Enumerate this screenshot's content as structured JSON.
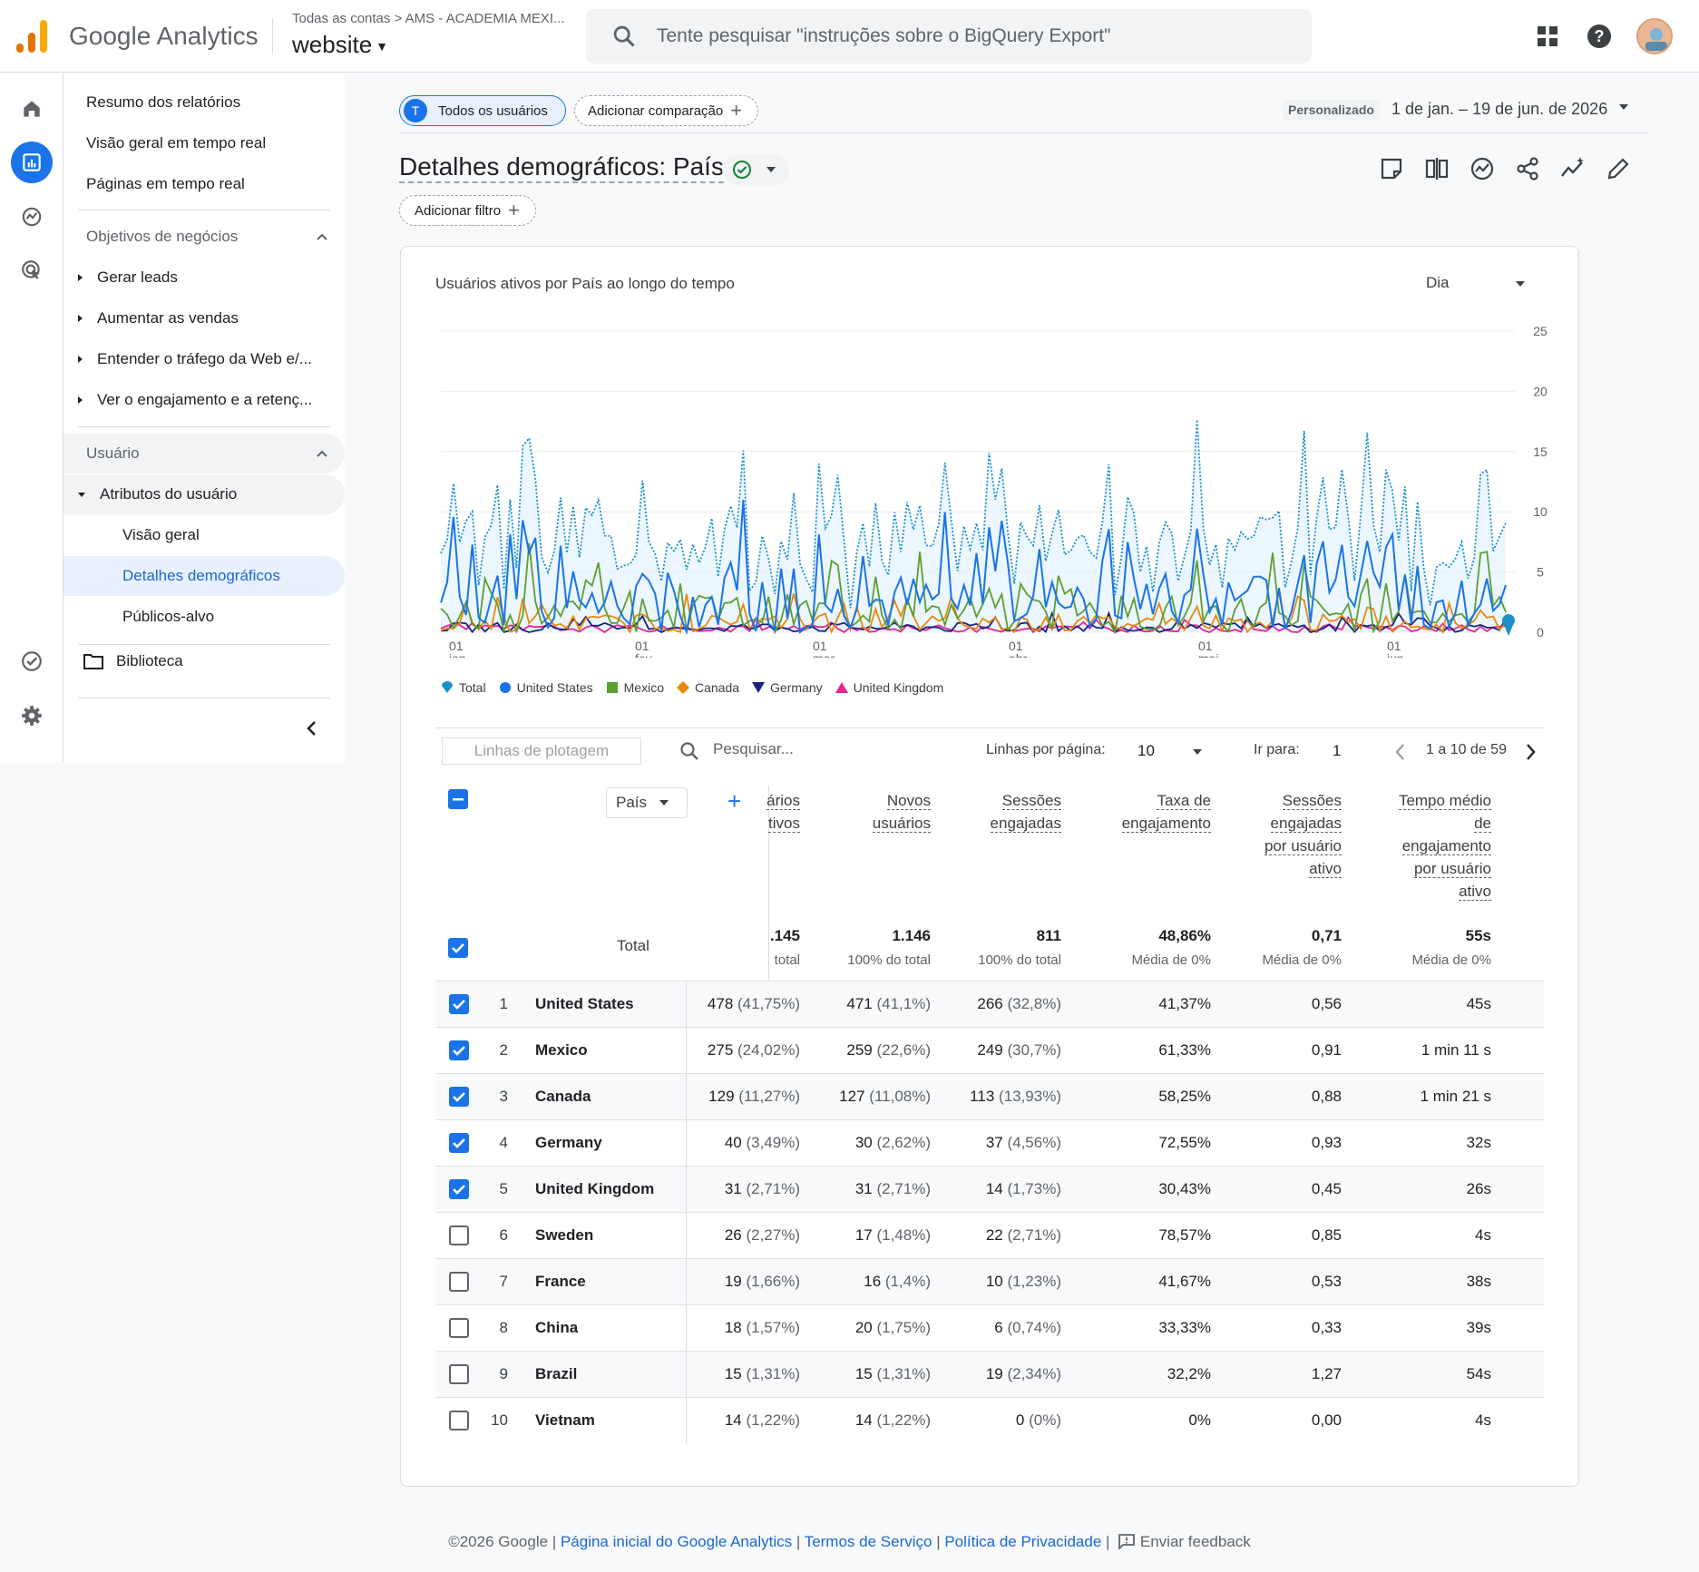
{
  "header": {
    "brand": "Google Analytics",
    "account_path": "Todas as contas > AMS - ACADEMIA MEXI...",
    "property": "website",
    "search_placeholder": "Tente pesquisar \"instruções sobre o BigQuery Export\""
  },
  "nav": {
    "items": [
      {
        "label": "Resumo dos relatórios"
      },
      {
        "label": "Visão geral em tempo real"
      },
      {
        "label": "Páginas em tempo real"
      }
    ],
    "section1": "Objetivos de negócios",
    "section1_items": [
      {
        "label": "Gerar leads"
      },
      {
        "label": "Aumentar as vendas"
      },
      {
        "label": "Entender o tráfego da Web e/..."
      },
      {
        "label": "Ver o engajamento e a retenç..."
      }
    ],
    "section2": "Usuário",
    "group": "Atributos do usuário",
    "group_items": [
      {
        "label": "Visão geral"
      },
      {
        "label": "Detalhes demográficos"
      },
      {
        "label": "Públicos-alvo"
      }
    ],
    "library": "Biblioteca"
  },
  "toolbar": {
    "segment_badge": "T",
    "segment": "Todos os usuários",
    "add_comparison": "Adicionar comparação",
    "date_label": "Personalizado",
    "date_range": "1 de jan. – 19 de jun. de 2026",
    "title": "Detalhes demográficos: País",
    "add_filter": "Adicionar filtro"
  },
  "chart_data": {
    "type": "line",
    "title": "Usuários ativos por País ao longo do tempo",
    "granularity": "Dia",
    "ylim": [
      0,
      25
    ],
    "yticks": [
      "0",
      "5",
      "10",
      "15",
      "20",
      "25"
    ],
    "xticks": [
      {
        "day": "01",
        "month": "jan."
      },
      {
        "day": "01",
        "month": "fev."
      },
      {
        "day": "01",
        "month": "mar."
      },
      {
        "day": "01",
        "month": "abr."
      },
      {
        "day": "01",
        "month": "mai."
      },
      {
        "day": "01",
        "month": "jun."
      }
    ],
    "legend_placement": "bottom-left",
    "series": [
      {
        "name": "Total",
        "color": "#1a8fc9"
      },
      {
        "name": "United States",
        "color": "#1a73e8"
      },
      {
        "name": "Mexico",
        "color": "#5c9e31"
      },
      {
        "name": "Canada",
        "color": "#e8890c"
      },
      {
        "name": "Germany",
        "color": "#1a237e"
      },
      {
        "name": "United Kingdom",
        "color": "#e52592"
      }
    ]
  },
  "table": {
    "plot_rows": "Linhas de plotagem",
    "search_placeholder": "Pesquisar...",
    "rows_per_page_label": "Linhas por página:",
    "rows_per_page": "10",
    "goto_label": "Ir para:",
    "goto_value": "1",
    "page_info": "1 a 10 de 59",
    "dimension": "País",
    "headers": [
      [
        "ários",
        "tivos"
      ],
      [
        "Novos",
        "usuários"
      ],
      [
        "Sessões",
        "engajadas"
      ],
      [
        "Taxa de",
        "engajamento"
      ],
      [
        "Sessões",
        "engajadas",
        "por usuário",
        "ativo"
      ],
      [
        "Tempo médio",
        "de",
        "engajamento",
        "por usuário",
        "ativo"
      ]
    ],
    "total_label": "Total",
    "totals": [
      {
        "value": ".145",
        "sub": "total"
      },
      {
        "value": "1.146",
        "sub": "100% do total"
      },
      {
        "value": "811",
        "sub": "100% do total"
      },
      {
        "value": "48,86%",
        "sub": "Média de 0%"
      },
      {
        "value": "0,71",
        "sub": "Média de 0%"
      },
      {
        "value": "55s",
        "sub": "Média de 0%"
      }
    ],
    "rows": [
      {
        "idx": "1",
        "country": "United States",
        "checked": true,
        "c1": "478",
        "p1": "(41,75%)",
        "c2": "471",
        "p2": "(41,1%)",
        "c3": "266",
        "p3": "(32,8%)",
        "c4": "41,37%",
        "c5": "0,56",
        "c6": "45s"
      },
      {
        "idx": "2",
        "country": "Mexico",
        "checked": true,
        "c1": "275",
        "p1": "(24,02%)",
        "c2": "259",
        "p2": "(22,6%)",
        "c3": "249",
        "p3": "(30,7%)",
        "c4": "61,33%",
        "c5": "0,91",
        "c6": "1 min 11 s"
      },
      {
        "idx": "3",
        "country": "Canada",
        "checked": true,
        "c1": "129",
        "p1": "(11,27%)",
        "c2": "127",
        "p2": "(11,08%)",
        "c3": "113",
        "p3": "(13,93%)",
        "c4": "58,25%",
        "c5": "0,88",
        "c6": "1 min 21 s"
      },
      {
        "idx": "4",
        "country": "Germany",
        "checked": true,
        "c1": "40",
        "p1": "(3,49%)",
        "c2": "30",
        "p2": "(2,62%)",
        "c3": "37",
        "p3": "(4,56%)",
        "c4": "72,55%",
        "c5": "0,93",
        "c6": "32s"
      },
      {
        "idx": "5",
        "country": "United Kingdom",
        "checked": true,
        "c1": "31",
        "p1": "(2,71%)",
        "c2": "31",
        "p2": "(2,71%)",
        "c3": "14",
        "p3": "(1,73%)",
        "c4": "30,43%",
        "c5": "0,45",
        "c6": "26s"
      },
      {
        "idx": "6",
        "country": "Sweden",
        "checked": false,
        "c1": "26",
        "p1": "(2,27%)",
        "c2": "17",
        "p2": "(1,48%)",
        "c3": "22",
        "p3": "(2,71%)",
        "c4": "78,57%",
        "c5": "0,85",
        "c6": "4s"
      },
      {
        "idx": "7",
        "country": "France",
        "checked": false,
        "c1": "19",
        "p1": "(1,66%)",
        "c2": "16",
        "p2": "(1,4%)",
        "c3": "10",
        "p3": "(1,23%)",
        "c4": "41,67%",
        "c5": "0,53",
        "c6": "38s"
      },
      {
        "idx": "8",
        "country": "China",
        "checked": false,
        "c1": "18",
        "p1": "(1,57%)",
        "c2": "20",
        "p2": "(1,75%)",
        "c3": "6",
        "p3": "(0,74%)",
        "c4": "33,33%",
        "c5": "0,33",
        "c6": "39s"
      },
      {
        "idx": "9",
        "country": "Brazil",
        "checked": false,
        "c1": "15",
        "p1": "(1,31%)",
        "c2": "15",
        "p2": "(1,31%)",
        "c3": "19",
        "p3": "(2,34%)",
        "c4": "32,2%",
        "c5": "1,27",
        "c6": "54s"
      },
      {
        "idx": "10",
        "country": "Vietnam",
        "checked": false,
        "c1": "14",
        "p1": "(1,22%)",
        "c2": "14",
        "p2": "(1,22%)",
        "c3": "0",
        "p3": "(0%)",
        "c4": "0%",
        "c5": "0,00",
        "c6": "4s"
      }
    ]
  },
  "footer": {
    "copyright": "©2026 Google",
    "link1": "Página inicial do Google Analytics",
    "link2": "Termos de Serviço",
    "link3": "Política de Privacidade",
    "feedback": "Enviar feedback"
  }
}
